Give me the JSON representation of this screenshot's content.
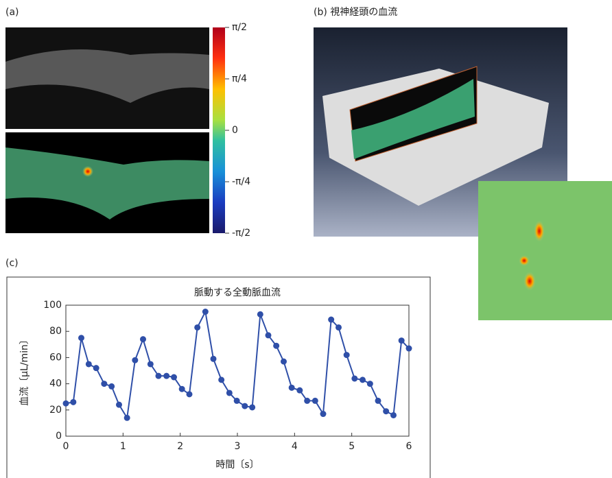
{
  "panels": {
    "a": "(a)",
    "b": "(b) 視神経頭の血流",
    "c": "(c)"
  },
  "colorbar": {
    "tick_labels": [
      "π/2",
      "π/4",
      "0",
      "-π/4",
      "-π/2"
    ]
  },
  "chart_data": {
    "type": "line",
    "title": "脈動する全動脈血流",
    "xlabel": "時間〔s〕",
    "ylabel": "血流〔μL/min〕",
    "xlim": [
      0,
      6
    ],
    "xticks": [
      0,
      1,
      2,
      3,
      4,
      5,
      6
    ],
    "ylim": [
      0,
      100
    ],
    "yticks": [
      0,
      20,
      40,
      60,
      80,
      100
    ],
    "series": [
      {
        "color": "#2f4fa8",
        "x": [
          0,
          0.13,
          0.27,
          0.4,
          0.53,
          0.67,
          0.8,
          0.93,
          1.07,
          1.21,
          1.35,
          1.48,
          1.62,
          1.76,
          1.89,
          2.03,
          2.16,
          2.3,
          2.44,
          2.58,
          2.72,
          2.86,
          2.99,
          3.13,
          3.26,
          3.4,
          3.54,
          3.68,
          3.81,
          3.95,
          4.09,
          4.22,
          4.36,
          4.5,
          4.64,
          4.77,
          4.91,
          5.05,
          5.19,
          5.32,
          5.46,
          5.6,
          5.73,
          5.87,
          6.0
        ],
        "values": [
          25,
          26,
          75,
          55,
          52,
          40,
          38,
          24,
          14,
          58,
          74,
          55,
          46,
          46,
          45,
          36,
          32,
          83,
          95,
          59,
          43,
          33,
          27,
          23,
          22,
          93,
          77,
          69,
          57,
          37,
          35,
          27,
          27,
          17,
          89,
          83,
          62,
          44,
          43,
          40,
          27,
          19,
          16,
          73,
          67
        ]
      }
    ]
  }
}
